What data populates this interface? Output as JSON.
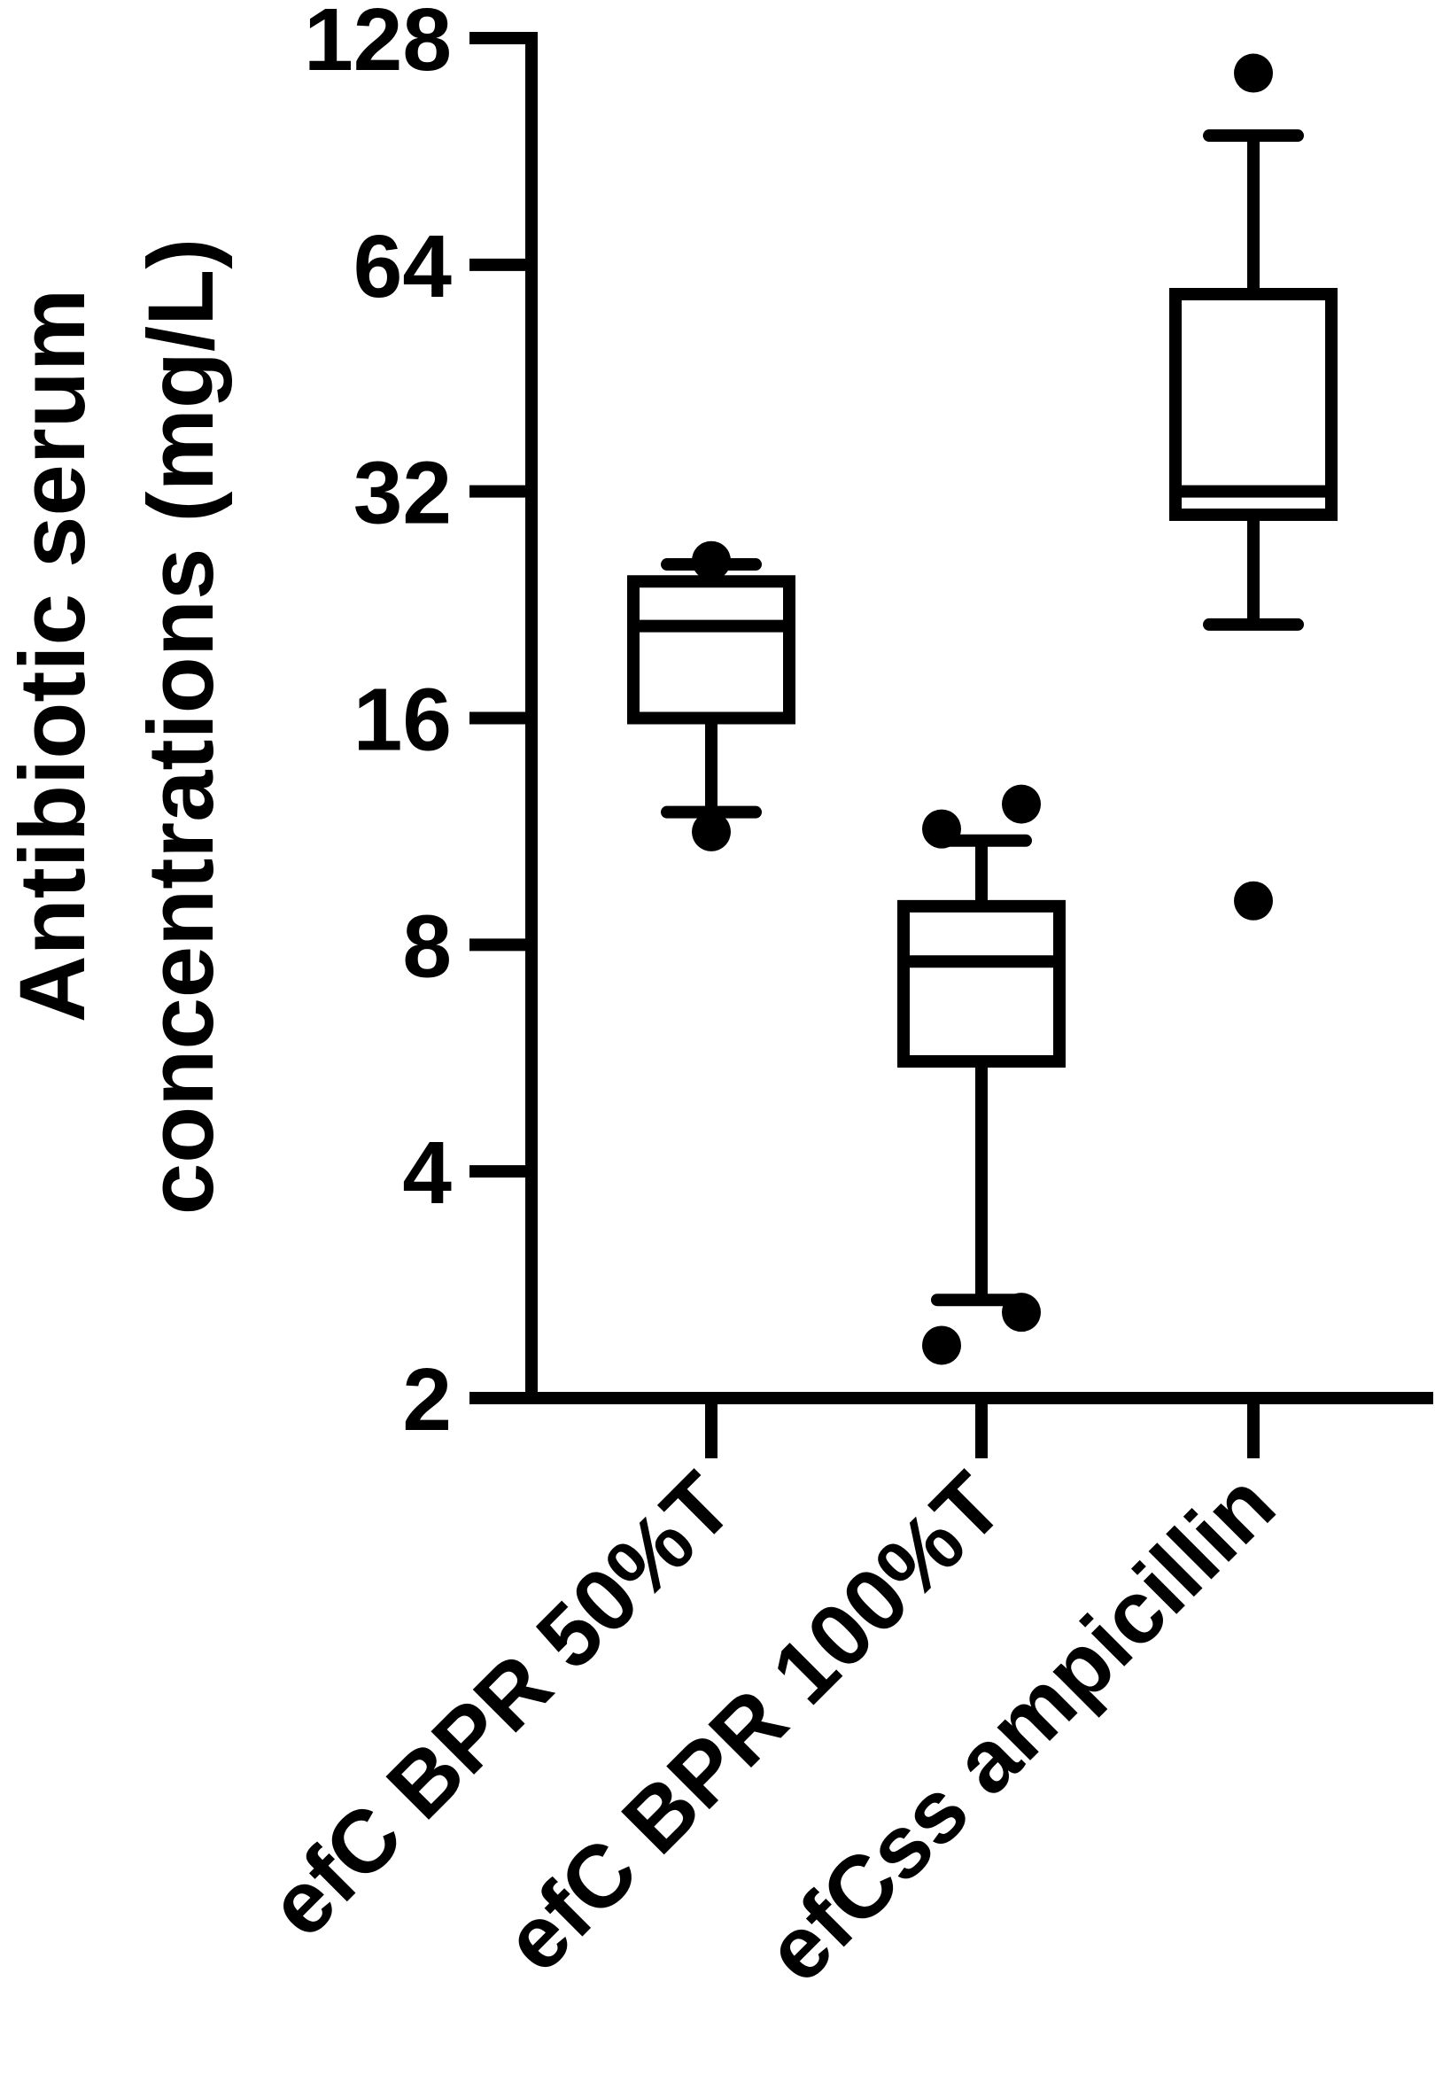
{
  "chart_data": {
    "type": "box",
    "ylabel_line1": "Antibiotic serum",
    "ylabel_line2": "concentrations (mg/L)",
    "y_scale": "log2",
    "ylim": [
      2,
      128
    ],
    "yticks": [
      {
        "value": 2,
        "label": "2"
      },
      {
        "value": 4,
        "label": "4"
      },
      {
        "value": 8,
        "label": "8"
      },
      {
        "value": 16,
        "label": "16"
      },
      {
        "value": 32,
        "label": "32"
      },
      {
        "value": 64,
        "label": "64"
      },
      {
        "value": 128,
        "label": "128"
      }
    ],
    "categories": [
      "efC BPR 50%T",
      "efC BPR 100%T",
      "efCss ampicillin"
    ],
    "boxes": [
      {
        "category": "efC BPR 50%T",
        "whisker_low": 12.0,
        "q1": 16.0,
        "median": 21.2,
        "q3": 24.3,
        "whisker_high": 25.6,
        "outliers": [
          11.3,
          25.9
        ]
      },
      {
        "category": "efC BPR 100%T",
        "whisker_low": 2.7,
        "q1": 5.6,
        "median": 7.6,
        "q3": 9.0,
        "whisker_high": 11.0,
        "outliers": [
          2.35,
          2.6,
          11.4,
          12.3
        ]
      },
      {
        "category": "efCss ampicillin",
        "whisker_low": 21.3,
        "q1": 29.8,
        "median": 32.0,
        "q3": 58.5,
        "whisker_high": 95.0,
        "outliers": [
          9.15,
          115.0
        ]
      }
    ],
    "colors": {
      "stroke": "#000000",
      "fill": "#ffffff"
    },
    "grid": false,
    "legend": "none"
  }
}
